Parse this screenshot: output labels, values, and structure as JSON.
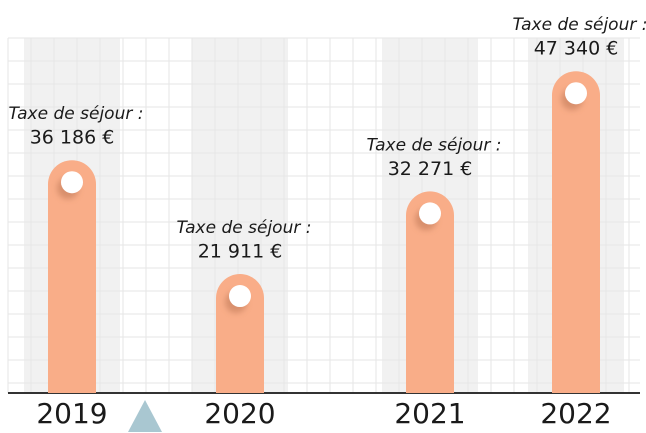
{
  "chart_data": {
    "type": "bar",
    "annotation": "Taxe de séjour :",
    "categories": [
      "2019",
      "2020",
      "2021",
      "2022"
    ],
    "values": [
      36186,
      21911,
      32271,
      47340
    ],
    "value_labels": [
      "36 186 €",
      "21 911 €",
      "32 271 €",
      "47 340 €"
    ],
    "color": "#f9ad88",
    "ylim": [
      7000,
      50000
    ]
  }
}
